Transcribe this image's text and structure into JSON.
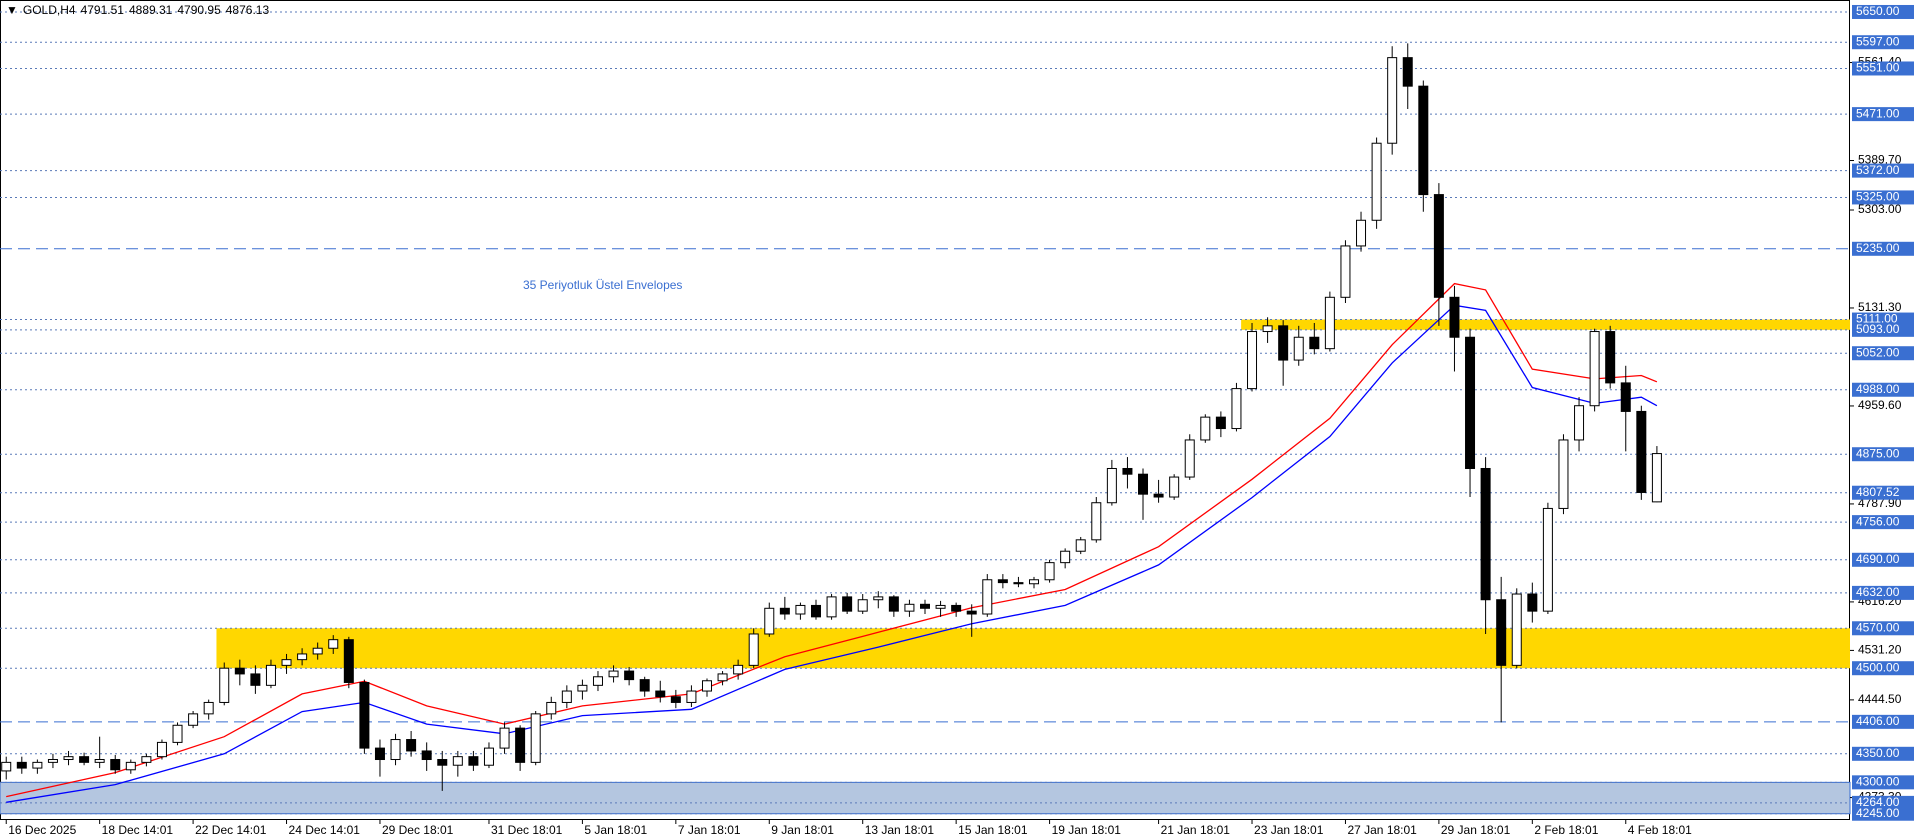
{
  "chart_data": {
    "type": "candlestick",
    "title": "GOLD,H4",
    "annotation": "35 Periyotluk Üstel Envelopes",
    "annotation_color": "#3a6fd1",
    "xlim": [
      -0.4,
      118.4
    ],
    "ylim": [
      4234,
      5671
    ],
    "xticks": [
      {
        "value": 0,
        "label": "16 Dec 2025"
      },
      {
        "value": 6,
        "label": "18 Dec 14:01"
      },
      {
        "value": 12,
        "label": "22 Dec 14:01"
      },
      {
        "value": 18,
        "label": "24 Dec 14:01"
      },
      {
        "value": 24,
        "label": "29 Dec 18:01"
      },
      {
        "value": 31,
        "label": "31 Dec 18:01"
      },
      {
        "value": 37,
        "label": "5 Jan 18:01"
      },
      {
        "value": 43,
        "label": "7 Jan 18:01"
      },
      {
        "value": 49,
        "label": "9 Jan 18:01"
      },
      {
        "value": 55,
        "label": "13 Jan 18:01"
      },
      {
        "value": 61,
        "label": "15 Jan 18:01"
      },
      {
        "value": 67,
        "label": "19 Jan 18:01"
      },
      {
        "value": 74,
        "label": "21 Jan 18:01"
      },
      {
        "value": 80,
        "label": "23 Jan 18:01"
      },
      {
        "value": 86,
        "label": "27 Jan 18:01"
      },
      {
        "value": 92,
        "label": "29 Jan 18:01"
      },
      {
        "value": 98,
        "label": "2 Feb 18:01"
      },
      {
        "value": 104,
        "label": "4 Feb 18:01"
      }
    ],
    "yticks": [
      {
        "value": 5561.4,
        "label": "5561.40"
      },
      {
        "value": 5389.7,
        "label": "5389.70"
      },
      {
        "value": 5303,
        "label": "5303.00"
      },
      {
        "value": 5131.3,
        "label": "5131.30"
      },
      {
        "value": 4959.6,
        "label": "4959.60"
      },
      {
        "value": 4787.9,
        "label": "4787.90"
      },
      {
        "value": 4616.2,
        "label": "4616.20"
      },
      {
        "value": 4531.2,
        "label": "4531.20"
      },
      {
        "value": 4444.5,
        "label": "4444.50"
      },
      {
        "value": 4273.3,
        "label": "4273.30"
      }
    ],
    "levels": [
      {
        "value": 5650,
        "label": "5650.00"
      },
      {
        "value": 5597,
        "label": "5597.00"
      },
      {
        "value": 5551,
        "label": "5551.00"
      },
      {
        "value": 5471,
        "label": "5471.00"
      },
      {
        "value": 5372,
        "label": "5372.00"
      },
      {
        "value": 5325,
        "label": "5325.00"
      },
      {
        "value": 5235,
        "label": "5235.00",
        "style": "dashed"
      },
      {
        "value": 5111,
        "label": "5111.00"
      },
      {
        "value": 5093,
        "label": "5093.00"
      },
      {
        "value": 5052,
        "label": "5052.00"
      },
      {
        "value": 4988,
        "label": "4988.00"
      },
      {
        "value": 4875,
        "label": "4875.00"
      },
      {
        "value": 4807.52,
        "label": "4807.52"
      },
      {
        "value": 4756,
        "label": "4756.00"
      },
      {
        "value": 4690,
        "label": "4690.00"
      },
      {
        "value": 4632,
        "label": "4632.00"
      },
      {
        "value": 4570,
        "label": "4570.00"
      },
      {
        "value": 4500,
        "label": "4500.00"
      },
      {
        "value": 4406,
        "label": "4406.00",
        "style": "dashed"
      },
      {
        "value": 4350,
        "label": "4350.00"
      },
      {
        "value": 4300,
        "label": "4300.00"
      },
      {
        "value": 4264,
        "label": "4264.00"
      },
      {
        "value": 4245,
        "label": "4245.00"
      }
    ],
    "zones": [
      {
        "from": 4500,
        "to": 4570,
        "start": 13.5,
        "color": "#ffd700"
      },
      {
        "from": 5093,
        "to": 5111,
        "start": 79.3,
        "color": "#ffd700"
      },
      {
        "from": 4245,
        "to": 4300,
        "start": -0.4,
        "color": "#b4c6e0"
      }
    ],
    "series": [
      {
        "color": "#ff0000",
        "x": [
          0,
          7,
          14,
          19,
          23,
          27,
          32,
          37,
          44,
          50,
          56,
          62,
          68,
          74,
          80,
          85,
          89,
          93,
          95,
          98,
          102,
          105,
          106
        ],
        "values": [
          4275,
          4317,
          4380,
          4455,
          4477,
          4434,
          4402,
          4434,
          4455,
          4520,
          4563,
          4606,
          4638,
          4713,
          4831,
          4938,
          5067,
          5174,
          5163,
          5024,
          5007,
          5013,
          5002
        ]
      },
      {
        "color": "#0000ff",
        "x": [
          0,
          7,
          14,
          19,
          23,
          27,
          32,
          37,
          44,
          50,
          56,
          62,
          68,
          74,
          80,
          85,
          89,
          93,
          95,
          98,
          102,
          105,
          106
        ],
        "values": [
          4265,
          4296,
          4350,
          4424,
          4440,
          4402,
          4385,
          4417,
          4428,
          4498,
          4537,
          4578,
          4610,
          4681,
          4799,
          4906,
          5035,
          5136,
          5127,
          4992,
          4964,
          4975,
          4960
        ]
      }
    ],
    "candles": [
      [
        4320,
        4345,
        4305,
        4335
      ],
      [
        4335,
        4345,
        4315,
        4325
      ],
      [
        4325,
        4340,
        4315,
        4335
      ],
      [
        4335,
        4350,
        4325,
        4340
      ],
      [
        4340,
        4355,
        4330,
        4345
      ],
      [
        4345,
        4352,
        4330,
        4335
      ],
      [
        4335,
        4380,
        4325,
        4340
      ],
      [
        4340,
        4348,
        4315,
        4322
      ],
      [
        4322,
        4340,
        4315,
        4335
      ],
      [
        4335,
        4350,
        4328,
        4345
      ],
      [
        4345,
        4375,
        4340,
        4370
      ],
      [
        4370,
        4405,
        4365,
        4400
      ],
      [
        4400,
        4425,
        4395,
        4420
      ],
      [
        4420,
        4445,
        4410,
        4440
      ],
      [
        4440,
        4510,
        4435,
        4500
      ],
      [
        4500,
        4515,
        4470,
        4490
      ],
      [
        4490,
        4505,
        4455,
        4470
      ],
      [
        4470,
        4515,
        4465,
        4505
      ],
      [
        4505,
        4525,
        4490,
        4515
      ],
      [
        4515,
        4535,
        4505,
        4525
      ],
      [
        4525,
        4545,
        4515,
        4535
      ],
      [
        4535,
        4558,
        4525,
        4550
      ],
      [
        4550,
        4555,
        4465,
        4475
      ],
      [
        4475,
        4480,
        4350,
        4360
      ],
      [
        4360,
        4375,
        4310,
        4340
      ],
      [
        4340,
        4385,
        4330,
        4375
      ],
      [
        4375,
        4390,
        4345,
        4355
      ],
      [
        4355,
        4370,
        4320,
        4340
      ],
      [
        4340,
        4355,
        4285,
        4330
      ],
      [
        4330,
        4355,
        4310,
        4345
      ],
      [
        4345,
        4355,
        4320,
        4330
      ],
      [
        4330,
        4370,
        4325,
        4360
      ],
      [
        4360,
        4405,
        4350,
        4395
      ],
      [
        4395,
        4400,
        4320,
        4335
      ],
      [
        4335,
        4425,
        4330,
        4420
      ],
      [
        4420,
        4450,
        4410,
        4440
      ],
      [
        4440,
        4470,
        4430,
        4460
      ],
      [
        4460,
        4480,
        4445,
        4470
      ],
      [
        4470,
        4495,
        4460,
        4485
      ],
      [
        4485,
        4505,
        4475,
        4495
      ],
      [
        4495,
        4502,
        4470,
        4480
      ],
      [
        4480,
        4485,
        4450,
        4460
      ],
      [
        4460,
        4478,
        4440,
        4450
      ],
      [
        4450,
        4462,
        4430,
        4440
      ],
      [
        4440,
        4470,
        4432,
        4460
      ],
      [
        4460,
        4482,
        4450,
        4478
      ],
      [
        4478,
        4495,
        4470,
        4490
      ],
      [
        4490,
        4515,
        4480,
        4505
      ],
      [
        4505,
        4570,
        4500,
        4560
      ],
      [
        4560,
        4615,
        4555,
        4605
      ],
      [
        4605,
        4625,
        4585,
        4595
      ],
      [
        4595,
        4615,
        4585,
        4610
      ],
      [
        4610,
        4620,
        4585,
        4590
      ],
      [
        4590,
        4630,
        4585,
        4625
      ],
      [
        4625,
        4632,
        4595,
        4600
      ],
      [
        4600,
        4630,
        4595,
        4620
      ],
      [
        4620,
        4635,
        4605,
        4625
      ],
      [
        4625,
        4628,
        4590,
        4600
      ],
      [
        4600,
        4620,
        4590,
        4612
      ],
      [
        4612,
        4620,
        4595,
        4605
      ],
      [
        4605,
        4618,
        4590,
        4610
      ],
      [
        4610,
        4615,
        4590,
        4600
      ],
      [
        4600,
        4612,
        4555,
        4595
      ],
      [
        4595,
        4665,
        4590,
        4655
      ],
      [
        4655,
        4665,
        4640,
        4650
      ],
      [
        4650,
        4660,
        4642,
        4648
      ],
      [
        4648,
        4660,
        4640,
        4655
      ],
      [
        4655,
        4690,
        4650,
        4685
      ],
      [
        4685,
        4710,
        4675,
        4705
      ],
      [
        4705,
        4730,
        4700,
        4725
      ],
      [
        4725,
        4800,
        4720,
        4790
      ],
      [
        4790,
        4865,
        4785,
        4850
      ],
      [
        4850,
        4870,
        4815,
        4840
      ],
      [
        4840,
        4850,
        4760,
        4805
      ],
      [
        4805,
        4830,
        4790,
        4800
      ],
      [
        4800,
        4840,
        4795,
        4835
      ],
      [
        4835,
        4910,
        4830,
        4900
      ],
      [
        4900,
        4945,
        4895,
        4940
      ],
      [
        4940,
        4950,
        4905,
        4920
      ],
      [
        4920,
        5000,
        4915,
        4990
      ],
      [
        4990,
        5105,
        4985,
        5090
      ],
      [
        5090,
        5115,
        5070,
        5100
      ],
      [
        5100,
        5110,
        4995,
        5040
      ],
      [
        5040,
        5100,
        5030,
        5080
      ],
      [
        5080,
        5105,
        5050,
        5060
      ],
      [
        5060,
        5160,
        5055,
        5150
      ],
      [
        5150,
        5250,
        5140,
        5240
      ],
      [
        5240,
        5300,
        5230,
        5285
      ],
      [
        5285,
        5430,
        5270,
        5420
      ],
      [
        5420,
        5590,
        5400,
        5570
      ],
      [
        5570,
        5595,
        5480,
        5520
      ],
      [
        5520,
        5530,
        5300,
        5330
      ],
      [
        5330,
        5350,
        5100,
        5150
      ],
      [
        5150,
        5170,
        5020,
        5080
      ],
      [
        5080,
        5095,
        4800,
        4850
      ],
      [
        4850,
        4870,
        4560,
        4620
      ],
      [
        4620,
        4660,
        4405,
        4505
      ],
      [
        4505,
        4640,
        4500,
        4630
      ],
      [
        4630,
        4650,
        4580,
        4600
      ],
      [
        4600,
        4790,
        4595,
        4780
      ],
      [
        4780,
        4910,
        4770,
        4900
      ],
      [
        4900,
        4975,
        4880,
        4960
      ],
      [
        4960,
        5095,
        4950,
        5090
      ],
      [
        5090,
        5100,
        4990,
        5000
      ],
      [
        5000,
        5030,
        4880,
        4950
      ],
      [
        4950,
        4960,
        4795,
        4808
      ],
      [
        4791.51,
        4889.31,
        4790.95,
        4876.13
      ]
    ]
  }
}
